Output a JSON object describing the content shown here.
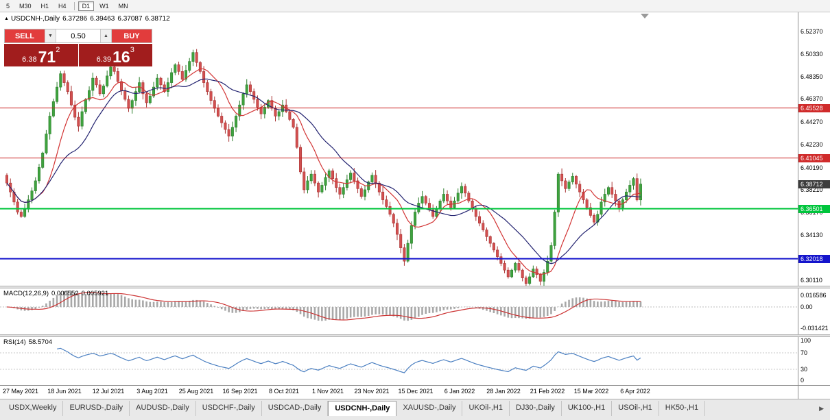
{
  "icons": {
    "expand_arrow": "▲",
    "spin_down": "▼",
    "spin_up": "▲",
    "tab_scroll_right": "▶"
  },
  "toolbar": {
    "timeframes_left": [
      "5",
      "M30",
      "H1",
      "H4"
    ],
    "timeframes_right": [
      "D1",
      "W1",
      "MN"
    ],
    "active": "D1"
  },
  "symbol_info": {
    "symbol": "USDCNH-,Daily",
    "open": "6.37286",
    "high": "6.39463",
    "low": "6.37087",
    "close": "6.38712"
  },
  "trade_panel": {
    "sell_label": "SELL",
    "buy_label": "BUY",
    "volume": "0.50",
    "sell_price_main": "6.38",
    "sell_price_big": "71",
    "sell_price_sup": "2",
    "buy_price_main": "6.39",
    "buy_price_big": "16",
    "buy_price_sup": "3"
  },
  "price_scale": {
    "ticks": [
      "6.52370",
      "6.50330",
      "6.48350",
      "6.46370",
      "6.44270",
      "6.42230",
      "6.40190",
      "6.38210",
      "6.36170",
      "6.34130",
      "6.30110"
    ],
    "badges": [
      {
        "text": "6.45528",
        "price": 6.45528,
        "bg": "#d02b2b"
      },
      {
        "text": "6.41045",
        "price": 6.41045,
        "bg": "#d02b2b"
      },
      {
        "text": "6.38712",
        "price": 6.38712,
        "bg": "#3d3d3d"
      },
      {
        "text": "6.36501",
        "price": 6.36501,
        "bg": "#00c53c"
      },
      {
        "text": "6.32018",
        "price": 6.32018,
        "bg": "#1414cc"
      }
    ]
  },
  "macd_panel": {
    "name": "MACD(12,26,9)",
    "value_main": "0.006552",
    "value_signal": "0.005921",
    "scale_top": "0.016586",
    "scale_zero": "0.00",
    "scale_bottom": "-0.031421"
  },
  "rsi_panel": {
    "name": "RSI(14)",
    "value": "58.5704",
    "scale": [
      "100",
      "70",
      "30",
      "0"
    ]
  },
  "tabs": {
    "items": [
      "USDX,Weekly",
      "EURUSD-,Daily",
      "AUDUSD-,Daily",
      "USDCHF-,Daily",
      "USDCAD-,Daily",
      "USDCNH-,Daily",
      "XAUUSD-,Daily",
      "UKOil-,H1",
      "DJ30-,Daily",
      "UK100-,H1",
      "USOil-,H1",
      "HK50-,H1"
    ],
    "active": "USDCNH-,Daily"
  },
  "chart_data": {
    "type": "candlestick",
    "symbol": "USDCNH",
    "timeframe": "Daily",
    "title": "USDCNH-,Daily",
    "ylim": [
      6.296,
      6.541
    ],
    "x_labels": [
      "27 May 2021",
      "18 Jun 2021",
      "12 Jul 2021",
      "3 Aug 2021",
      "25 Aug 2021",
      "16 Sep 2021",
      "8 Oct 2021",
      "1 Nov 2021",
      "23 Nov 2021",
      "15 Dec 2021",
      "6 Jan 2022",
      "28 Jan 2022",
      "21 Feb 2022",
      "15 Mar 2022",
      "6 Apr 2022"
    ],
    "first_open": 6.395,
    "closes": [
      6.388,
      6.38,
      6.371,
      6.362,
      6.358,
      6.365,
      6.373,
      6.381,
      6.39,
      6.402,
      6.415,
      6.432,
      6.448,
      6.461,
      6.474,
      6.486,
      6.478,
      6.47,
      6.458,
      6.447,
      6.439,
      6.452,
      6.463,
      6.471,
      6.482,
      6.476,
      6.468,
      6.475,
      6.484,
      6.492,
      6.488,
      6.479,
      6.471,
      6.463,
      6.455,
      6.462,
      6.47,
      6.478,
      6.468,
      6.46,
      6.466,
      6.474,
      6.482,
      6.476,
      6.47,
      6.478,
      6.487,
      6.494,
      6.488,
      6.481,
      6.489,
      6.497,
      6.505,
      6.496,
      6.488,
      6.478,
      6.47,
      6.462,
      6.455,
      6.448,
      6.442,
      6.436,
      6.43,
      6.438,
      6.448,
      6.458,
      6.468,
      6.476,
      6.47,
      6.463,
      6.456,
      6.45,
      6.456,
      6.462,
      6.455,
      6.448,
      6.452,
      6.458,
      6.452,
      6.445,
      6.438,
      6.42,
      6.398,
      6.382,
      6.39,
      6.396,
      6.388,
      6.38,
      6.386,
      6.393,
      6.399,
      6.392,
      6.384,
      6.378,
      6.384,
      6.391,
      6.397,
      6.39,
      6.383,
      6.376,
      6.382,
      6.389,
      6.395,
      6.388,
      6.38,
      6.373,
      6.367,
      6.36,
      6.352,
      6.342,
      6.33,
      6.318,
      6.334,
      6.35,
      6.362,
      6.37,
      6.376,
      6.37,
      6.364,
      6.358,
      6.365,
      6.372,
      6.378,
      6.372,
      6.366,
      6.372,
      6.379,
      6.385,
      6.379,
      6.372,
      6.365,
      6.358,
      6.352,
      6.346,
      6.34,
      6.334,
      6.328,
      6.322,
      6.316,
      6.31,
      6.304,
      6.31,
      6.316,
      6.31,
      6.303,
      6.298,
      6.304,
      6.311,
      6.306,
      6.3,
      6.308,
      6.318,
      6.332,
      6.362,
      6.396,
      6.39,
      6.383,
      6.389,
      6.394,
      6.387,
      6.38,
      6.373,
      6.366,
      6.359,
      6.353,
      6.36,
      6.371,
      6.378,
      6.384,
      6.378,
      6.372,
      6.366,
      6.373,
      6.38,
      6.386,
      6.392,
      6.3729,
      6.38712
    ],
    "levels": [
      {
        "price": 6.45528,
        "color": "#cc2222",
        "width": 1
      },
      {
        "price": 6.41045,
        "color": "#cc2222",
        "width": 1
      },
      {
        "price": 6.36501,
        "color": "#00c53c",
        "width": 2
      },
      {
        "price": 6.32018,
        "color": "#1414cc",
        "width": 2
      }
    ],
    "indicators": [
      {
        "name": "SMA",
        "period": 10,
        "color": "#d23434"
      },
      {
        "name": "SMA",
        "period": 20,
        "color": "#232370"
      },
      {
        "name": "MACD",
        "params": [
          12,
          26,
          9
        ]
      },
      {
        "name": "RSI",
        "params": [
          14
        ]
      }
    ],
    "colors": {
      "up": "#3fa33f",
      "up_border": "#2a7d2a",
      "down": "#d25050",
      "down_border": "#a83232",
      "macd_hist": "#a8a8a8",
      "macd_signal": "#cc3333",
      "rsi_line": "#4a7fc1"
    }
  }
}
